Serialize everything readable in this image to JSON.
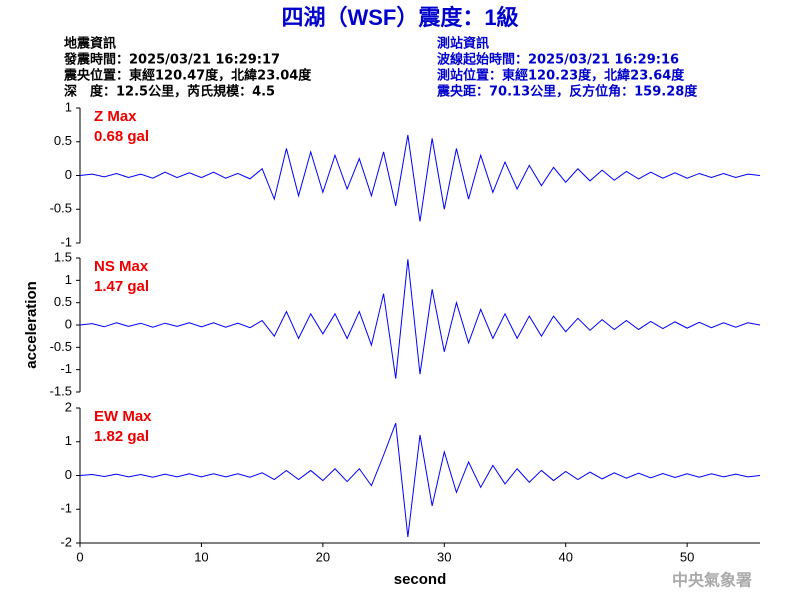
{
  "header": {
    "title": "四湖（WSF）震度：1級",
    "left": [
      "地震資訊",
      "發震時間：2025/03/21 16:29:17",
      "震央位置：東經120.47度，北緯23.04度",
      "深　度：12.5公里，芮氏規模：4.5"
    ],
    "right": [
      "測站資訊",
      "波線起始時間：2025/03/21 16:29:16",
      "測站位置：東經120.23度，北緯23.64度",
      "震央距：70.13公里，反方位角：159.28度"
    ],
    "watermark": "中央氣象署"
  },
  "chart_data": [
    {
      "type": "line",
      "annotations": [
        "Z Max",
        "0.68 gal"
      ],
      "color": "#0000ff",
      "x": [
        0,
        1,
        2,
        3,
        4,
        5,
        6,
        7,
        8,
        9,
        10,
        11,
        12,
        13,
        14,
        15,
        16,
        17,
        18,
        19,
        20,
        21,
        22,
        23,
        24,
        25,
        26,
        27,
        28,
        29,
        30,
        31,
        32,
        33,
        34,
        35,
        36,
        37,
        38,
        39,
        40,
        41,
        42,
        43,
        44,
        45,
        46,
        47,
        48,
        49,
        50,
        51,
        52,
        53,
        54,
        55,
        56
      ],
      "values": [
        0,
        0.02,
        -0.02,
        0.03,
        -0.03,
        0.02,
        -0.04,
        0.05,
        -0.03,
        0.04,
        -0.03,
        0.05,
        -0.04,
        0.03,
        -0.05,
        0.1,
        -0.35,
        0.4,
        -0.3,
        0.35,
        -0.25,
        0.3,
        -0.2,
        0.25,
        -0.3,
        0.35,
        -0.45,
        0.6,
        -0.68,
        0.55,
        -0.5,
        0.4,
        -0.35,
        0.3,
        -0.25,
        0.2,
        -0.2,
        0.15,
        -0.15,
        0.12,
        -0.1,
        0.1,
        -0.08,
        0.08,
        -0.07,
        0.06,
        -0.05,
        0.05,
        -0.04,
        0.04,
        -0.04,
        0.03,
        -0.03,
        0.03,
        -0.03,
        0.02,
        0
      ],
      "xlim": [
        0,
        56
      ],
      "ylim": [
        -1,
        1
      ],
      "yticks": [
        -1,
        -0.5,
        0,
        0.5,
        1
      ]
    },
    {
      "type": "line",
      "annotations": [
        "NS Max",
        "1.47 gal"
      ],
      "color": "#0000ff",
      "ylabel": "acceleration",
      "x": [
        0,
        1,
        2,
        3,
        4,
        5,
        6,
        7,
        8,
        9,
        10,
        11,
        12,
        13,
        14,
        15,
        16,
        17,
        18,
        19,
        20,
        21,
        22,
        23,
        24,
        25,
        26,
        27,
        28,
        29,
        30,
        31,
        32,
        33,
        34,
        35,
        36,
        37,
        38,
        39,
        40,
        41,
        42,
        43,
        44,
        45,
        46,
        47,
        48,
        49,
        50,
        51,
        52,
        53,
        54,
        55,
        56
      ],
      "values": [
        0,
        0.03,
        -0.04,
        0.05,
        -0.03,
        0.04,
        -0.05,
        0.04,
        -0.03,
        0.05,
        -0.04,
        0.05,
        -0.05,
        0.04,
        -0.06,
        0.1,
        -0.25,
        0.3,
        -0.3,
        0.25,
        -0.2,
        0.25,
        -0.3,
        0.3,
        -0.45,
        0.7,
        -1.2,
        1.47,
        -1.1,
        0.8,
        -0.6,
        0.5,
        -0.4,
        0.35,
        -0.3,
        0.25,
        -0.3,
        0.2,
        -0.25,
        0.2,
        -0.15,
        0.15,
        -0.12,
        0.12,
        -0.1,
        0.1,
        -0.1,
        0.08,
        -0.08,
        0.07,
        -0.07,
        0.06,
        -0.06,
        0.05,
        -0.05,
        0.05,
        0
      ],
      "xlim": [
        0,
        56
      ],
      "ylim": [
        -1.5,
        1.5
      ],
      "yticks": [
        -1.5,
        -1,
        -0.5,
        0,
        0.5,
        1,
        1.5
      ]
    },
    {
      "type": "line",
      "annotations": [
        "EW Max",
        "1.82 gal"
      ],
      "color": "#0000ff",
      "xlabel": "second",
      "x": [
        0,
        1,
        2,
        3,
        4,
        5,
        6,
        7,
        8,
        9,
        10,
        11,
        12,
        13,
        14,
        15,
        16,
        17,
        18,
        19,
        20,
        21,
        22,
        23,
        24,
        25,
        26,
        27,
        28,
        29,
        30,
        31,
        32,
        33,
        34,
        35,
        36,
        37,
        38,
        39,
        40,
        41,
        42,
        43,
        44,
        45,
        46,
        47,
        48,
        49,
        50,
        51,
        52,
        53,
        54,
        55,
        56
      ],
      "values": [
        0,
        0.03,
        -0.03,
        0.04,
        -0.04,
        0.03,
        -0.05,
        0.04,
        -0.04,
        0.05,
        -0.04,
        0.05,
        -0.04,
        0.05,
        -0.05,
        0.08,
        -0.12,
        0.15,
        -0.12,
        0.15,
        -0.15,
        0.2,
        -0.18,
        0.2,
        -0.3,
        0.6,
        1.55,
        -1.82,
        1.2,
        -0.9,
        0.7,
        -0.5,
        0.4,
        -0.35,
        0.3,
        -0.25,
        0.2,
        -0.2,
        0.15,
        -0.15,
        0.12,
        -0.12,
        0.1,
        -0.1,
        0.08,
        -0.08,
        0.07,
        -0.07,
        0.06,
        -0.06,
        0.05,
        -0.05,
        0.05,
        -0.04,
        0.04,
        -0.04,
        0
      ],
      "xlim": [
        0,
        56
      ],
      "xticks": [
        0,
        10,
        20,
        30,
        40,
        50
      ],
      "ylim": [
        -2,
        2
      ],
      "yticks": [
        -2,
        -1,
        0,
        1,
        2
      ]
    }
  ]
}
